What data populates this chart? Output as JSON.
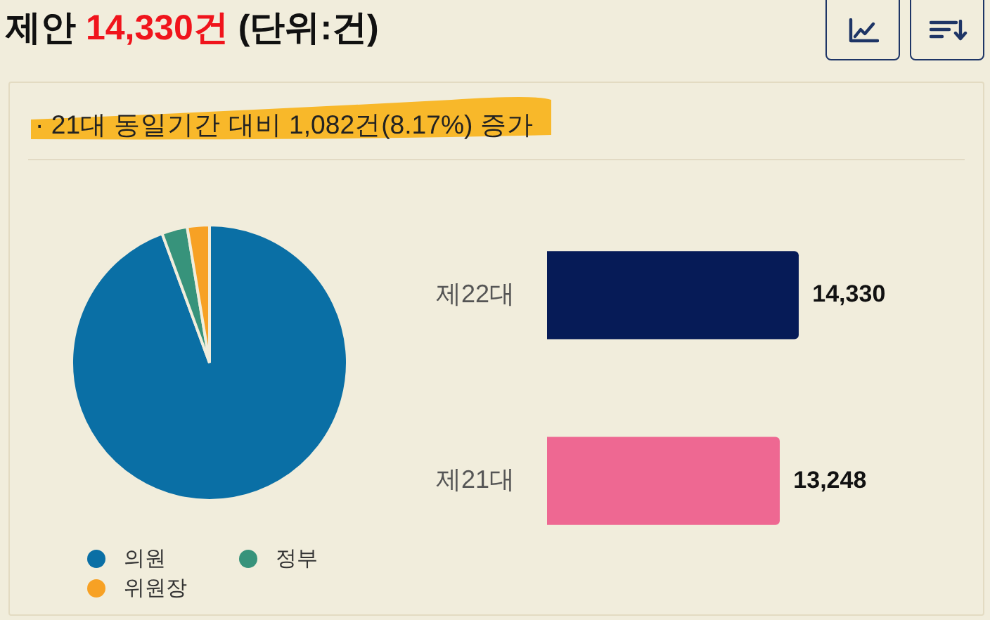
{
  "chart_data": [
    {
      "type": "pie",
      "title": "제안 14,330건 (단위:건)",
      "annotations": [
        "· 21대 동일기간 대비 1,082건(8.17%) 증가"
      ],
      "categories": [
        "의원",
        "정부",
        "위원장"
      ],
      "values": [
        94.4,
        3.0,
        2.6
      ],
      "colors": [
        "#0a6fa5",
        "#37937b",
        "#f7a124"
      ],
      "legend": "bottom"
    },
    {
      "type": "bar",
      "orientation": "horizontal",
      "categories": [
        "제22대",
        "제21대"
      ],
      "values": [
        14330,
        13248
      ],
      "colors": [
        "#061b57",
        "#ee6892"
      ],
      "value_labels": [
        "14,330",
        "13,248"
      ],
      "tick_labels": "y"
    }
  ]
}
